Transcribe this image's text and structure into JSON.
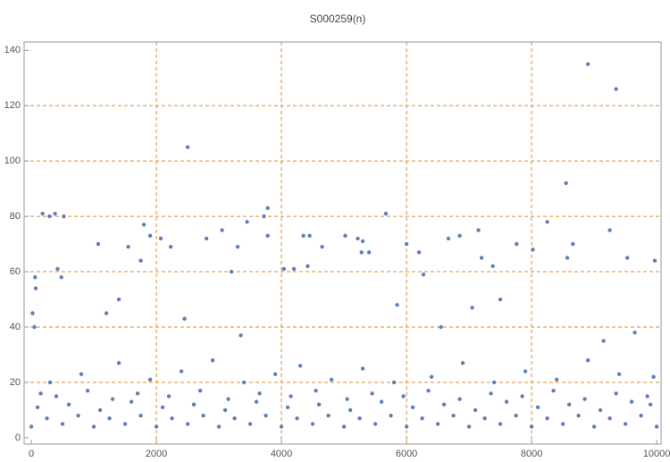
{
  "chart_data": {
    "type": "scatter",
    "title": "S000259(n)",
    "xlim": [
      -115,
      10070
    ],
    "ylim": [
      -2.3,
      143
    ],
    "xticks": [
      0,
      2000,
      4000,
      6000,
      8000,
      10000
    ],
    "yticks": [
      0,
      20,
      40,
      60,
      80,
      100,
      120,
      140
    ],
    "xgrid": [
      2000,
      4000,
      6000,
      8000
    ],
    "ygrid": [
      20,
      40,
      60,
      80,
      100,
      120
    ],
    "grid_color": "#e08a2e",
    "series": [
      {
        "color": "#5e81b5",
        "x": [
          0,
          500,
          1000,
          1500,
          2000,
          2500,
          3000,
          3500,
          4000,
          4500,
          5000,
          5500,
          6000,
          6500,
          7000,
          7500,
          8000,
          8500,
          9000,
          9500,
          10000,
          250,
          750,
          1250,
          1750,
          2250,
          2750,
          3250,
          3750,
          4250,
          4750,
          5250,
          5750,
          6250,
          6750,
          7250,
          7750,
          8250,
          8750,
          9250,
          9750,
          100,
          600,
          1100,
          1600,
          2100,
          2600,
          3100,
          3600,
          4100,
          4600,
          5100,
          5600,
          6100,
          6600,
          7100,
          7600,
          8100,
          8600,
          9100,
          9600,
          9900,
          150,
          400,
          900,
          1300,
          1700,
          2200,
          2700,
          3150,
          3650,
          4150,
          4550,
          5050,
          5450,
          5950,
          6350,
          6850,
          7350,
          7850,
          8350,
          8850,
          9350,
          9850,
          300,
          800,
          1400,
          1900,
          2400,
          2900,
          3400,
          3900,
          4300,
          4800,
          5300,
          5800,
          6400,
          6900,
          7400,
          7900,
          8400,
          8900,
          9400,
          9950,
          2500,
          8900,
          9350,
          8550,
          5670,
          3780,
          180,
          380,
          290,
          520,
          3720,
          1800,
          8250,
          3450,
          9250,
          7150,
          1070,
          1550,
          2230,
          6000,
          3780,
          4350,
          4450,
          5020,
          5220,
          5300,
          6670,
          6850,
          7760,
          8020,
          8660,
          9530,
          9970,
          8570,
          60,
          70,
          20,
          50,
          420,
          480,
          2070,
          2800,
          1900,
          1750,
          1400,
          4650,
          5280,
          5400,
          6200,
          6270,
          7380,
          7500,
          7200,
          3050,
          3300,
          3200,
          4040,
          4200,
          4420,
          1200,
          2450,
          3350,
          5850,
          6550,
          7050,
          9150,
          9650
        ],
        "values": [
          4,
          5,
          4,
          5,
          4,
          5,
          4,
          5,
          4,
          5,
          4,
          5,
          4,
          5,
          4,
          5,
          4,
          5,
          4,
          5,
          4,
          7,
          8,
          7,
          8,
          7,
          8,
          7,
          8,
          7,
          8,
          7,
          8,
          7,
          8,
          7,
          8,
          7,
          8,
          7,
          8,
          11,
          12,
          10,
          13,
          11,
          12,
          10,
          13,
          11,
          12,
          10,
          13,
          11,
          12,
          10,
          13,
          11,
          12,
          10,
          13,
          12,
          16,
          15,
          17,
          14,
          16,
          15,
          17,
          14,
          16,
          15,
          17,
          14,
          16,
          15,
          17,
          14,
          16,
          15,
          17,
          14,
          16,
          15,
          20,
          23,
          27,
          21,
          24,
          28,
          20,
          23,
          26,
          21,
          25,
          20,
          22,
          27,
          20,
          24,
          21,
          28,
          23,
          22,
          105,
          135,
          126,
          92,
          81,
          83,
          81,
          81,
          80,
          80,
          80,
          77,
          78,
          78,
          75,
          75,
          70,
          69,
          69,
          70,
          73,
          73,
          73,
          73,
          72,
          71,
          72,
          73,
          70,
          68,
          70,
          65,
          64,
          65,
          58,
          54,
          45,
          40,
          61,
          58,
          72,
          72,
          73,
          64,
          50,
          69,
          67,
          67,
          67,
          59,
          62,
          50,
          65,
          75,
          69,
          60,
          61,
          61,
          62,
          45,
          43,
          37,
          48,
          40,
          47,
          35,
          38
        ]
      }
    ]
  }
}
